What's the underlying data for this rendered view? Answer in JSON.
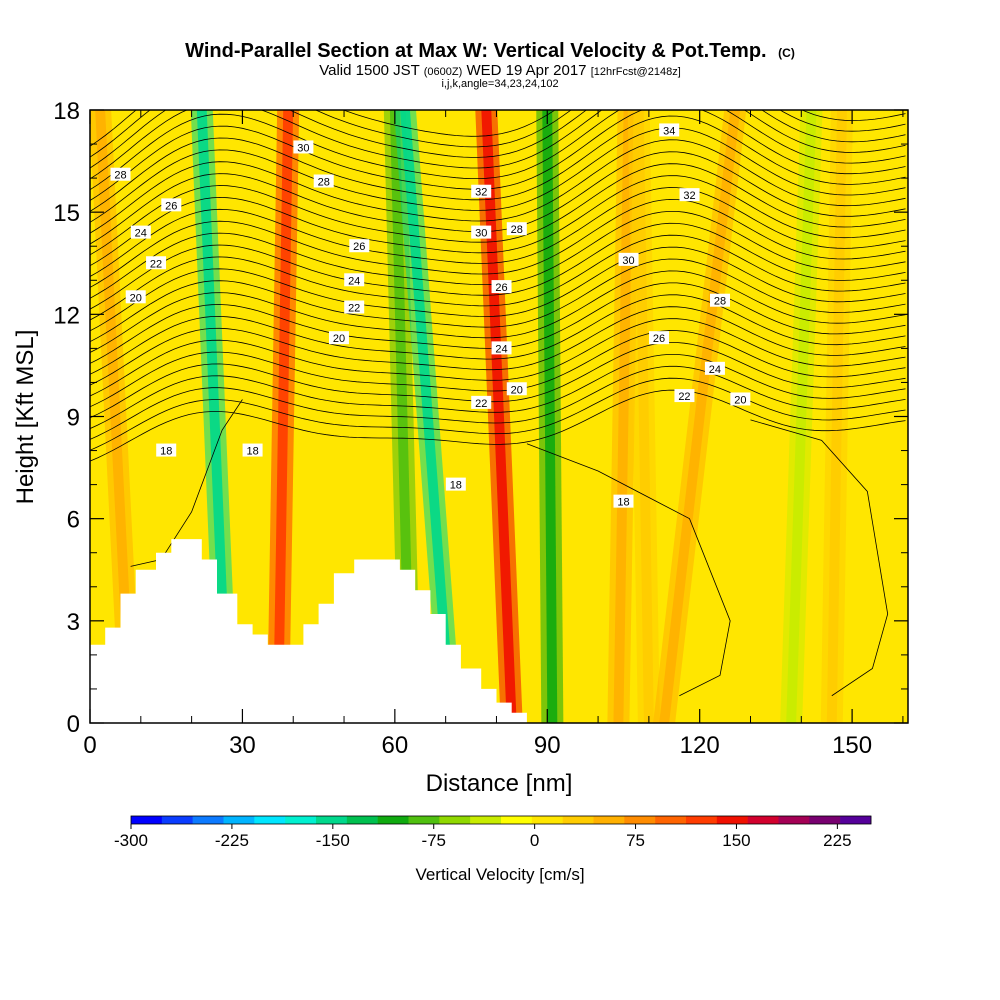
{
  "chart_data": {
    "type": "heatmap",
    "title": "Wind-Parallel Section at Max W: Vertical Velocity & Pot.Temp.",
    "title_mark": "(C)",
    "subtitle_parts": [
      "Valid 1500 JST",
      "(0600Z)",
      "WED 19 Apr 2017",
      "[12hrFcst@2148z]"
    ],
    "subtitle2": "i,j,k,angle=34,23,24,102",
    "xlabel": "Distance [nm]",
    "ylabel": "Height [Kft MSL]",
    "xlim": [
      0,
      161
    ],
    "ylim": [
      0,
      18
    ],
    "x_ticks": [
      "0",
      "30",
      "60",
      "90",
      "120",
      "150"
    ],
    "y_ticks": [
      "0",
      "3",
      "6",
      "9",
      "12",
      "15",
      "18"
    ],
    "colorbar": {
      "label": "Vertical Velocity [cm/s]",
      "tick_labels": [
        "-300",
        "-225",
        "-150",
        "-75",
        "0",
        "75",
        "150",
        "225"
      ],
      "range": [
        -300,
        250
      ],
      "colors": [
        "#0000ff",
        "#0a3cff",
        "#0c7aff",
        "#00b4ff",
        "#00e6ff",
        "#00f0d0",
        "#00d88c",
        "#00c050",
        "#10aa10",
        "#50c010",
        "#90d800",
        "#c8ec00",
        "#ffff00",
        "#ffe600",
        "#ffcc00",
        "#ffb000",
        "#ff8c00",
        "#ff6400",
        "#ff3c00",
        "#f01000",
        "#d2002d",
        "#a40055",
        "#780070",
        "#55009a"
      ]
    },
    "shaded_field": "Vertical Velocity [cm/s]",
    "contour_field": "Pot.Temp.",
    "velocity_bands": [
      {
        "x_bottom": 8,
        "x_top": 2,
        "value": 55
      },
      {
        "x_bottom": 27,
        "x_top": 22,
        "value": -150
      },
      {
        "x_bottom": 37,
        "x_top": 39,
        "value": 130
      },
      {
        "x_bottom": 63,
        "x_top": 60,
        "value": -90
      },
      {
        "x_bottom": 71,
        "x_top": 62,
        "value": -140
      },
      {
        "x_bottom": 83,
        "x_top": 78,
        "value": 150
      },
      {
        "x_bottom": 91,
        "x_top": 90,
        "value": -100
      },
      {
        "x_bottom": 104,
        "x_top": 106,
        "value": 60
      },
      {
        "x_bottom": 110,
        "x_top": 108,
        "value": 30
      },
      {
        "x_bottom": 113,
        "x_top": 127,
        "value": 45
      },
      {
        "x_bottom": 138,
        "x_top": 142,
        "value": -40
      },
      {
        "x_bottom": 146,
        "x_top": 148,
        "value": 35
      }
    ],
    "terrain": [
      [
        0,
        2.3
      ],
      [
        3,
        2.3
      ],
      [
        3,
        2.8
      ],
      [
        6,
        2.8
      ],
      [
        6,
        3.8
      ],
      [
        9,
        3.8
      ],
      [
        9,
        4.5
      ],
      [
        13,
        4.5
      ],
      [
        13,
        5.0
      ],
      [
        16,
        5.0
      ],
      [
        16,
        5.4
      ],
      [
        22,
        5.4
      ],
      [
        22,
        4.8
      ],
      [
        25,
        4.8
      ],
      [
        25,
        3.8
      ],
      [
        29,
        3.8
      ],
      [
        29,
        2.9
      ],
      [
        32,
        2.9
      ],
      [
        32,
        2.6
      ],
      [
        35,
        2.6
      ],
      [
        35,
        2.3
      ],
      [
        42,
        2.3
      ],
      [
        42,
        2.9
      ],
      [
        45,
        2.9
      ],
      [
        45,
        3.5
      ],
      [
        48,
        3.5
      ],
      [
        48,
        4.4
      ],
      [
        52,
        4.4
      ],
      [
        52,
        4.8
      ],
      [
        61,
        4.8
      ],
      [
        61,
        4.5
      ],
      [
        64,
        4.5
      ],
      [
        64,
        3.9
      ],
      [
        67,
        3.9
      ],
      [
        67,
        3.2
      ],
      [
        70,
        3.2
      ],
      [
        70,
        2.3
      ],
      [
        73,
        2.3
      ],
      [
        73,
        1.6
      ],
      [
        77,
        1.6
      ],
      [
        77,
        1.0
      ],
      [
        80,
        1.0
      ],
      [
        80,
        0.6
      ],
      [
        83,
        0.6
      ],
      [
        83,
        0.3
      ],
      [
        86,
        0.3
      ],
      [
        86,
        0
      ]
    ],
    "contour_label_values": [
      "18",
      "18",
      "18",
      "18",
      "20",
      "20",
      "20",
      "20",
      "22",
      "22",
      "22",
      "22",
      "24",
      "24",
      "24",
      "24",
      "26",
      "26",
      "26",
      "26",
      "28",
      "28",
      "28",
      "28",
      "30",
      "30",
      "30",
      "32",
      "32",
      "34"
    ]
  }
}
